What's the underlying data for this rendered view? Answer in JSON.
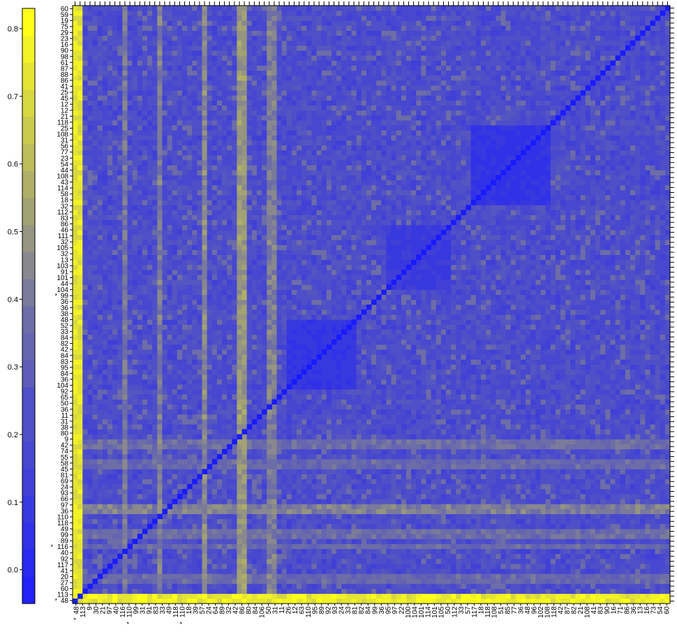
{
  "chart_data": {
    "type": "heatmap",
    "title": "",
    "xlabel": "",
    "ylabel": "",
    "colorbar": {
      "min": -0.05,
      "max": 0.83,
      "ticks": [
        "0.0",
        "0.1",
        "0.2",
        "0.3",
        "0.4",
        "0.5",
        "0.6",
        "0.7",
        "0.8"
      ],
      "tick_values": [
        0.0,
        0.1,
        0.2,
        0.3,
        0.4,
        0.5,
        0.6,
        0.7,
        0.8
      ],
      "low_color": "#1a1aff",
      "mid_color": "#6d6da8",
      "high_color": "#ffff1a"
    },
    "diagonal_value": -0.05,
    "baseline_value": 0.22,
    "yellow_columns": [
      {
        "from": 0,
        "to": 1,
        "value": 0.75
      },
      {
        "from": 10,
        "to": 10,
        "value": 0.42
      },
      {
        "from": 17,
        "to": 17,
        "value": 0.44
      },
      {
        "from": 26,
        "to": 26,
        "value": 0.48
      },
      {
        "from": 33,
        "to": 34,
        "value": 0.52
      },
      {
        "from": 39,
        "to": 40,
        "value": 0.44
      }
    ],
    "yellow_rows": [
      {
        "from": 0,
        "to": 1,
        "value": 0.78
      },
      {
        "from": 4,
        "to": 5,
        "value": 0.36
      },
      {
        "from": 11,
        "to": 11,
        "value": 0.36
      },
      {
        "from": 13,
        "to": 14,
        "value": 0.38
      },
      {
        "from": 18,
        "to": 19,
        "value": 0.45
      },
      {
        "from": 27,
        "to": 28,
        "value": 0.36
      },
      {
        "from": 31,
        "to": 32,
        "value": 0.38
      }
    ],
    "blue_blocks": [
      {
        "from": 80,
        "to": 95,
        "value": 0.08
      },
      {
        "from": 43,
        "to": 56,
        "value": 0.1
      },
      {
        "from": 63,
        "to": 75,
        "value": 0.12
      }
    ],
    "row_labels_bottom_to_top": [
      "48",
      "113",
      "60",
      "27",
      "20",
      "41",
      "117",
      "92",
      "40",
      "116",
      "89",
      "99",
      "49",
      "118",
      "110",
      "36",
      "97",
      "66",
      "93",
      "24",
      "69",
      "81",
      "45",
      "58",
      "55",
      "74",
      "42",
      "9",
      "80",
      "38",
      "31",
      "11",
      "36",
      "50",
      "65",
      "92",
      "104",
      "36",
      "84",
      "95",
      "83",
      "84",
      "42",
      "82",
      "84",
      "33",
      "52",
      "48",
      "38",
      "36",
      "36",
      "99",
      "104",
      "44",
      "101",
      "91",
      "103",
      "13",
      "32",
      "105",
      "32",
      "111",
      "46",
      "86",
      "83",
      "112",
      "32",
      "18",
      "58",
      "114",
      "43",
      "108",
      "44",
      "54",
      "23",
      "77",
      "56",
      "31",
      "108",
      "25",
      "118",
      "21",
      "12",
      "12",
      "45",
      "25",
      "41",
      "86",
      "88",
      "87",
      "61",
      "98",
      "90",
      "16",
      "23",
      "29",
      "75",
      "19",
      "59",
      "60"
    ],
    "col_labels_left_to_right": [
      "48",
      "113",
      "9",
      "30",
      "21",
      "97",
      "40",
      "116",
      "110",
      "99",
      "31",
      "91",
      "83",
      "33",
      "49",
      "118",
      "110",
      "18",
      "39",
      "57",
      "24",
      "64",
      "89",
      "32",
      "42",
      "86",
      "80",
      "84",
      "106",
      "50",
      "31",
      "11",
      "26",
      "12",
      "63",
      "110",
      "95",
      "89",
      "92",
      "93",
      "24",
      "33",
      "81",
      "82",
      "84",
      "99",
      "36",
      "95",
      "97",
      "22",
      "100",
      "104",
      "101",
      "114",
      "101",
      "105",
      "50",
      "112",
      "33",
      "57",
      "117",
      "18",
      "118",
      "108",
      "51",
      "85",
      "77",
      "36",
      "48",
      "96",
      "102",
      "108",
      "118",
      "42",
      "87",
      "82",
      "21",
      "108",
      "41",
      "83",
      "90",
      "16",
      "71",
      "86",
      "36",
      "13",
      "16",
      "73",
      "54",
      "60"
    ],
    "starred_rows": [
      "48",
      "113",
      "110",
      "118",
      "99",
      "116",
      "92",
      "40",
      "89",
      "66"
    ],
    "starred_cols": [
      "48",
      "113",
      "110",
      "116",
      "110",
      "91",
      "33",
      "110",
      "32"
    ]
  }
}
